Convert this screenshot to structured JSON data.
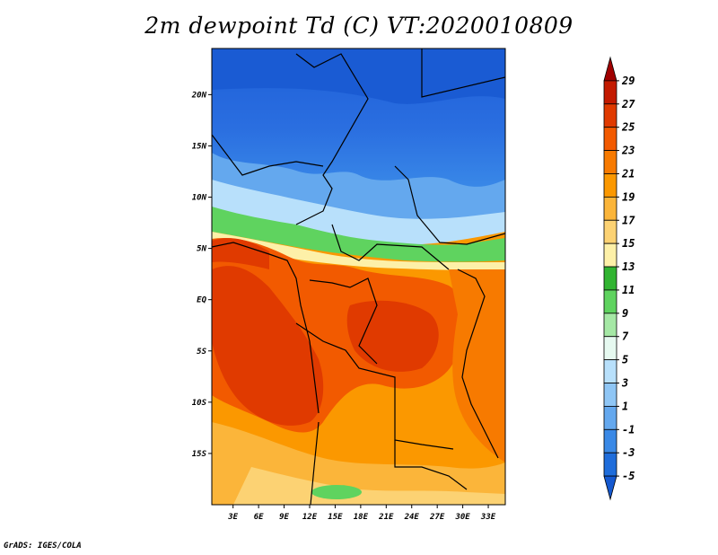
{
  "title": "2m dewpoint Td (C) VT:2020010809",
  "credit": "GrADS: IGES/COLA",
  "map": {
    "lat_labels": [
      "20N",
      "15N",
      "10N",
      "5N",
      "EQ",
      "5S",
      "10S",
      "15S"
    ],
    "lat_values": [
      20,
      15,
      10,
      5,
      0,
      -5,
      -10,
      -15
    ],
    "lon_labels": [
      "3E",
      "6E",
      "9E",
      "12E",
      "15E",
      "18E",
      "21E",
      "24E",
      "27E",
      "30E",
      "33E"
    ],
    "lon_values": [
      3,
      6,
      9,
      12,
      15,
      18,
      21,
      24,
      27,
      30,
      33
    ]
  },
  "colorbar": {
    "labels": [
      "29",
      "27",
      "25",
      "23",
      "21",
      "19",
      "17",
      "15",
      "13",
      "11",
      "9",
      "7",
      "5",
      "3",
      "1",
      "-1",
      "-3",
      "-5"
    ],
    "colors": [
      "#a00000",
      "#c31a00",
      "#e03a00",
      "#f25a00",
      "#f77a00",
      "#fb9800",
      "#fbb53a",
      "#fcd273",
      "#fdf0a8",
      "#31b431",
      "#5fd35f",
      "#a5e8a5",
      "#e6f9f0",
      "#b8e0fb",
      "#8fc6f5",
      "#64a8ee",
      "#3a89e6",
      "#1f6ddb",
      "#1559d0"
    ]
  }
}
